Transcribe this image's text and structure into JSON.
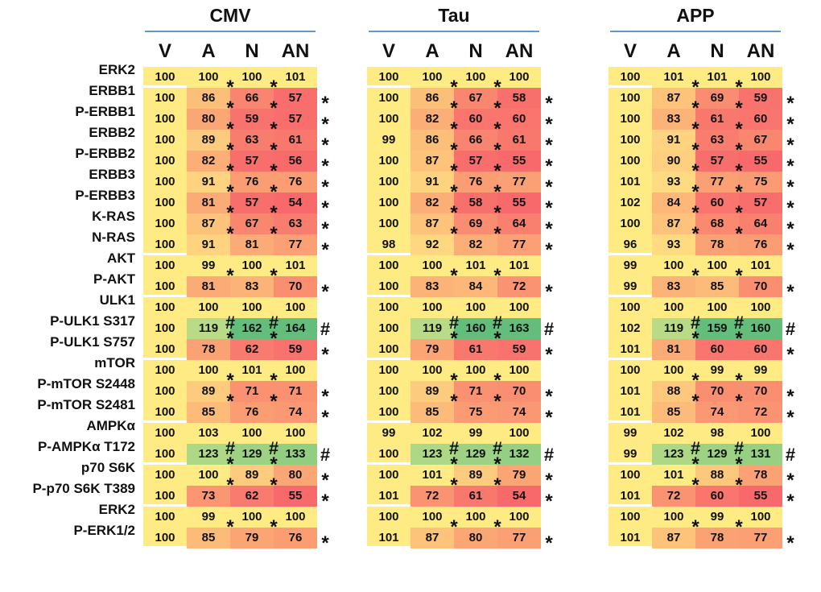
{
  "chart_data": {
    "type": "heatmap",
    "groups": [
      "CMV",
      "Tau",
      "APP"
    ],
    "columns": [
      "V",
      "A",
      "N",
      "AN"
    ],
    "rows": [
      "ERK2",
      "ERBB1",
      "P-ERBB1",
      "ERBB2",
      "P-ERBB2",
      "ERBB3",
      "P-ERBB3",
      "K-RAS",
      "N-RAS",
      "AKT",
      "P-AKT",
      "ULK1",
      "P-ULK1 S317",
      "P-ULK1 S757",
      "mTOR",
      "P-mTOR S2448",
      "P-mTOR S2481",
      "AMPKα",
      "P-AMPKα T172",
      "p70 S6K",
      "P-p70 S6K T389",
      "ERK2",
      "P-ERK1/2"
    ],
    "row_blocks": [
      {
        "type": "band",
        "rows": 1
      },
      {
        "type": "gradient",
        "rows": 8
      },
      {
        "type": "band",
        "rows": 2
      },
      {
        "type": "band",
        "rows": 3
      },
      {
        "type": "band",
        "rows": 3
      },
      {
        "type": "band",
        "rows": 2
      },
      {
        "type": "band",
        "rows": 2
      },
      {
        "type": "band",
        "rows": 2
      }
    ],
    "values": {
      "CMV": [
        [
          100,
          100,
          100,
          101
        ],
        [
          100,
          86,
          66,
          57
        ],
        [
          100,
          80,
          59,
          57
        ],
        [
          100,
          89,
          63,
          61
        ],
        [
          100,
          82,
          57,
          56
        ],
        [
          100,
          91,
          76,
          76
        ],
        [
          100,
          81,
          57,
          54
        ],
        [
          100,
          87,
          67,
          63
        ],
        [
          100,
          91,
          81,
          77
        ],
        [
          100,
          99,
          100,
          101
        ],
        [
          100,
          81,
          83,
          70
        ],
        [
          100,
          100,
          100,
          100
        ],
        [
          100,
          119,
          162,
          164
        ],
        [
          100,
          78,
          62,
          59
        ],
        [
          100,
          100,
          101,
          100
        ],
        [
          100,
          89,
          71,
          71
        ],
        [
          100,
          85,
          76,
          74
        ],
        [
          100,
          103,
          100,
          100
        ],
        [
          100,
          123,
          129,
          133
        ],
        [
          100,
          100,
          89,
          80
        ],
        [
          100,
          73,
          62,
          55
        ],
        [
          100,
          99,
          100,
          100
        ],
        [
          100,
          85,
          79,
          76
        ]
      ],
      "Tau": [
        [
          100,
          100,
          100,
          100
        ],
        [
          100,
          86,
          67,
          58
        ],
        [
          100,
          82,
          60,
          60
        ],
        [
          99,
          86,
          66,
          61
        ],
        [
          100,
          87,
          57,
          55
        ],
        [
          100,
          91,
          76,
          77
        ],
        [
          100,
          82,
          58,
          55
        ],
        [
          100,
          87,
          69,
          64
        ],
        [
          98,
          92,
          82,
          77
        ],
        [
          100,
          100,
          101,
          101
        ],
        [
          100,
          83,
          84,
          72
        ],
        [
          100,
          100,
          100,
          100
        ],
        [
          100,
          119,
          160,
          163
        ],
        [
          100,
          79,
          61,
          59
        ],
        [
          100,
          100,
          100,
          100
        ],
        [
          100,
          89,
          71,
          70
        ],
        [
          100,
          85,
          75,
          74
        ],
        [
          99,
          102,
          99,
          100
        ],
        [
          100,
          123,
          129,
          132
        ],
        [
          100,
          101,
          89,
          79
        ],
        [
          101,
          72,
          61,
          54
        ],
        [
          100,
          100,
          100,
          100
        ],
        [
          101,
          87,
          80,
          77
        ]
      ],
      "APP": [
        [
          100,
          101,
          101,
          100
        ],
        [
          100,
          87,
          69,
          59
        ],
        [
          100,
          83,
          61,
          60
        ],
        [
          100,
          91,
          63,
          67
        ],
        [
          100,
          90,
          57,
          55
        ],
        [
          101,
          93,
          77,
          75
        ],
        [
          102,
          84,
          60,
          57
        ],
        [
          100,
          87,
          68,
          64
        ],
        [
          96,
          93,
          78,
          76
        ],
        [
          99,
          100,
          100,
          101
        ],
        [
          99,
          83,
          85,
          70
        ],
        [
          100,
          100,
          100,
          100
        ],
        [
          102,
          119,
          159,
          160
        ],
        [
          101,
          81,
          60,
          60
        ],
        [
          100,
          100,
          99,
          99
        ],
        [
          101,
          88,
          70,
          70
        ],
        [
          101,
          85,
          74,
          72
        ],
        [
          99,
          102,
          98,
          100
        ],
        [
          99,
          123,
          129,
          131
        ],
        [
          100,
          101,
          88,
          78
        ],
        [
          101,
          72,
          60,
          55
        ],
        [
          100,
          100,
          99,
          100
        ],
        [
          101,
          87,
          78,
          77
        ]
      ]
    },
    "significance": {
      "CMV": [
        null,
        "*",
        "*",
        "*",
        "*",
        "*",
        "*",
        "*",
        "*",
        null,
        "*",
        null,
        "#",
        "*",
        null,
        "*",
        "*",
        null,
        "#",
        "*",
        "*",
        null,
        "*"
      ],
      "Tau": [
        null,
        "*",
        "*",
        "*",
        "*",
        "*",
        "*",
        "*",
        "*",
        null,
        "*",
        null,
        "#",
        "*",
        null,
        "*",
        "*",
        null,
        "#",
        "*",
        "*",
        null,
        "*"
      ],
      "APP": [
        null,
        "*",
        "*",
        "*",
        "*",
        "*",
        "*",
        "*",
        "*",
        null,
        "*",
        null,
        "#",
        "*",
        null,
        "*",
        "*",
        null,
        "#",
        "*",
        "*",
        null,
        "*"
      ]
    },
    "colors": {
      "band": "#ffeb84",
      "orange": "#fba775",
      "red": "#f8696b",
      "light_green": "#d2e38c",
      "green": "#63be7b",
      "rule": "#5b9bd5"
    }
  }
}
